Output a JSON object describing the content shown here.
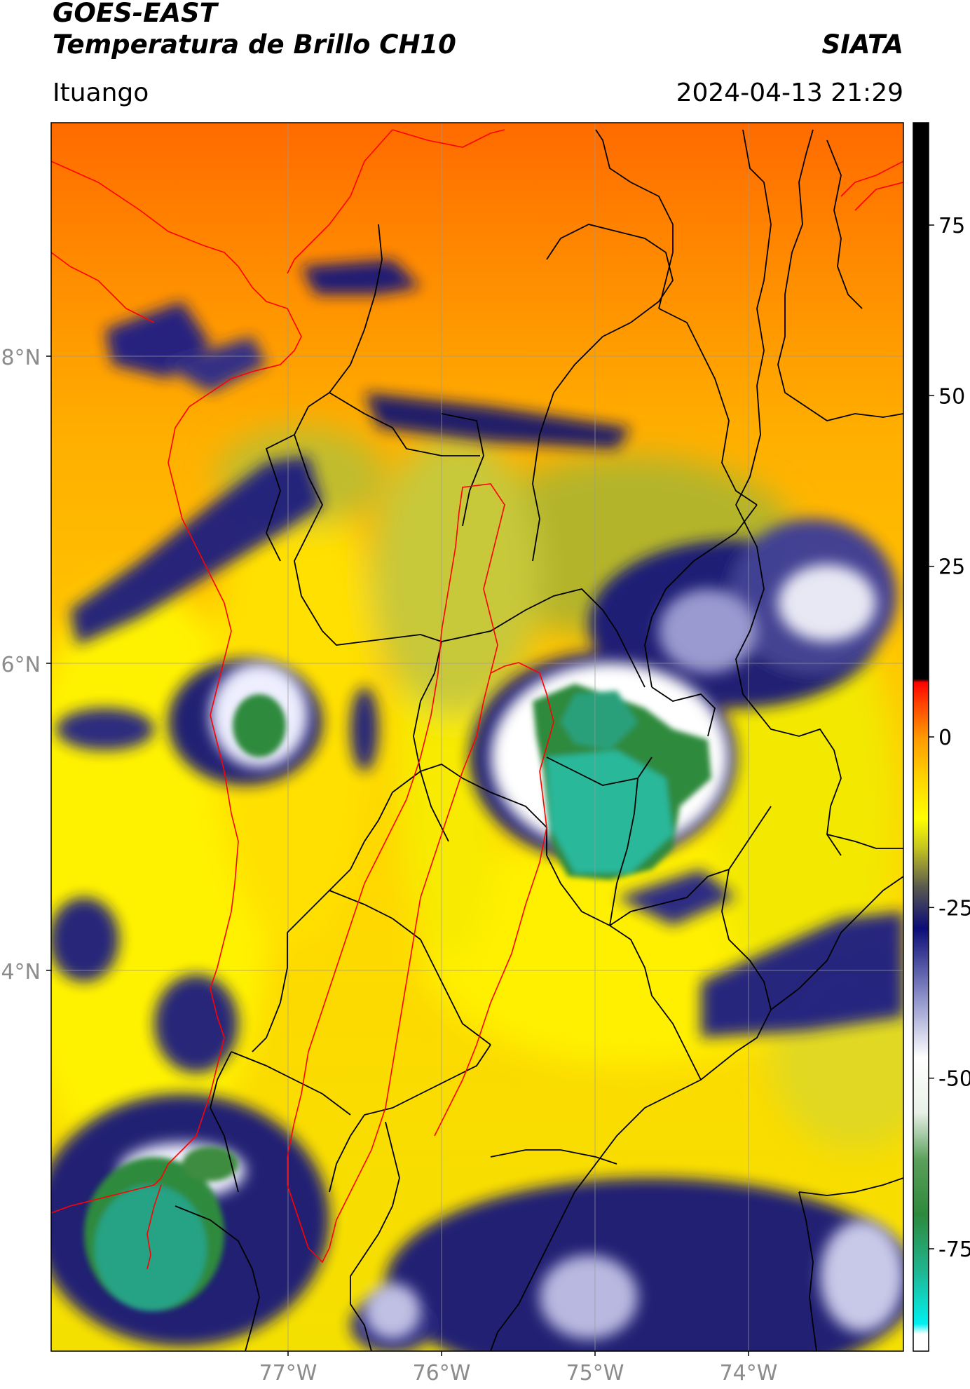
{
  "header": {
    "line1": "GOES-EAST",
    "line2": "Temperatura de Brillo CH10",
    "organization": "SIATA",
    "location": "Ituango",
    "timestamp": "2024-04-13 21:29"
  },
  "map": {
    "lat_ticks": [
      "8°N",
      "6°N",
      "4°N"
    ],
    "lon_ticks": [
      "77°W",
      "76°W",
      "75°W",
      "74°W"
    ],
    "lat_range": [
      1.7,
      9.7
    ],
    "lon_range": [
      -78.55,
      -73.0
    ],
    "border_colors": {
      "country": "#ff0000",
      "department": "#000000"
    }
  },
  "colorbar": {
    "ticks": [
      "75",
      "50",
      "25",
      "0",
      "-25",
      "-50",
      "-75"
    ],
    "tick_values": [
      75,
      50,
      25,
      0,
      -25,
      -50,
      -75
    ],
    "range": [
      -90,
      90
    ],
    "stops": [
      {
        "value": -90,
        "color": "#ffffff"
      },
      {
        "value": -87.5,
        "color": "#ffffff"
      },
      {
        "value": -86,
        "color": "#00f0f0"
      },
      {
        "value": -78,
        "color": "#20b48e"
      },
      {
        "value": -70,
        "color": "#2d8a3c"
      },
      {
        "value": -62,
        "color": "#5aa05a"
      },
      {
        "value": -55,
        "color": "#e8f0e8"
      },
      {
        "value": -47,
        "color": "#ffffff"
      },
      {
        "value": -38,
        "color": "#8a8fc8"
      },
      {
        "value": -28,
        "color": "#0c0c78"
      },
      {
        "value": -22,
        "color": "#5a5a50"
      },
      {
        "value": -16,
        "color": "#c8c81e"
      },
      {
        "value": -12,
        "color": "#ffff00"
      },
      {
        "value": -6,
        "color": "#ffd400"
      },
      {
        "value": 0,
        "color": "#ff9800"
      },
      {
        "value": 5,
        "color": "#ff4000"
      },
      {
        "value": 8,
        "color": "#ff0000"
      },
      {
        "value": 8.5,
        "color": "#000000"
      },
      {
        "value": 90,
        "color": "#000000"
      }
    ]
  }
}
